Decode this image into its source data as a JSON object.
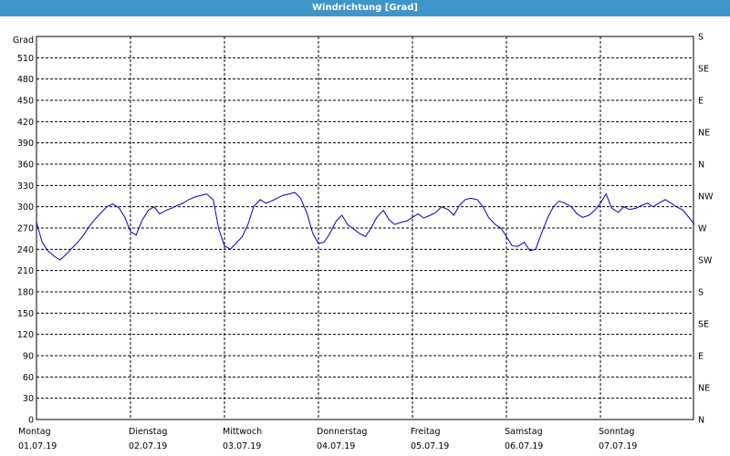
{
  "window": {
    "title": "Windrichtung [Grad]"
  },
  "chart_data": {
    "type": "line",
    "title": "Windrichtung [Grad]",
    "ylabel": "Grad",
    "ylim": [
      0,
      540
    ],
    "yticks": [
      0,
      30,
      60,
      90,
      120,
      150,
      180,
      210,
      240,
      270,
      300,
      330,
      360,
      390,
      420,
      450,
      480,
      510
    ],
    "right_ticks": [
      {
        "value": 0,
        "label": "N"
      },
      {
        "value": 45,
        "label": "NE"
      },
      {
        "value": 90,
        "label": "E"
      },
      {
        "value": 135,
        "label": "SE"
      },
      {
        "value": 180,
        "label": "S"
      },
      {
        "value": 225,
        "label": "SW"
      },
      {
        "value": 270,
        "label": "W"
      },
      {
        "value": 315,
        "label": "NW"
      },
      {
        "value": 360,
        "label": "N"
      },
      {
        "value": 405,
        "label": "NE"
      },
      {
        "value": 450,
        "label": "E"
      },
      {
        "value": 495,
        "label": "SE"
      },
      {
        "value": 540,
        "label": "S"
      }
    ],
    "days": [
      {
        "day": "Montag",
        "date": "01.07.19"
      },
      {
        "day": "Dienstag",
        "date": "02.07.19"
      },
      {
        "day": "Mittwoch",
        "date": "03.07.19"
      },
      {
        "day": "Donnerstag",
        "date": "04.07.19"
      },
      {
        "day": "Freitag",
        "date": "05.07.19"
      },
      {
        "day": "Samstag",
        "date": "06.07.19"
      },
      {
        "day": "Sonntag",
        "date": "07.07.19"
      }
    ],
    "x_unit": "days since 01.07.19 00:00",
    "grid": true,
    "line_color": "#0000cc",
    "series": [
      {
        "name": "",
        "x": [
          0,
          0.06,
          0.12,
          0.19,
          0.25,
          0.31,
          0.38,
          0.44,
          0.5,
          0.56,
          0.62,
          0.69,
          0.75,
          0.81,
          0.88,
          0.94,
          1,
          1.06,
          1.12,
          1.19,
          1.25,
          1.31,
          1.38,
          1.44,
          1.5,
          1.56,
          1.62,
          1.69,
          1.75,
          1.81,
          1.88,
          1.94,
          2,
          2.06,
          2.12,
          2.19,
          2.25,
          2.31,
          2.38,
          2.44,
          2.5,
          2.56,
          2.62,
          2.69,
          2.75,
          2.81,
          2.88,
          2.94,
          3,
          3.06,
          3.12,
          3.19,
          3.25,
          3.31,
          3.38,
          3.44,
          3.5,
          3.56,
          3.62,
          3.69,
          3.75,
          3.81,
          3.88,
          3.94,
          4,
          4.06,
          4.12,
          4.19,
          4.25,
          4.31,
          4.38,
          4.44,
          4.5,
          4.56,
          4.62,
          4.69,
          4.75,
          4.81,
          4.88,
          4.94,
          5,
          5.06,
          5.12,
          5.19,
          5.25,
          5.31,
          5.38,
          5.44,
          5.5,
          5.56,
          5.62,
          5.69,
          5.75,
          5.81,
          5.88,
          5.94,
          6,
          6.06,
          6.12,
          6.19,
          6.25,
          6.31,
          6.38,
          6.44,
          6.5,
          6.56,
          6.62,
          6.69,
          6.75,
          6.81,
          6.88,
          6.94,
          7
        ],
        "values": [
          278,
          250,
          238,
          230,
          225,
          232,
          242,
          250,
          260,
          272,
          282,
          292,
          300,
          304,
          298,
          285,
          265,
          260,
          280,
          295,
          300,
          290,
          295,
          298,
          302,
          305,
          310,
          314,
          316,
          318,
          310,
          268,
          245,
          240,
          248,
          258,
          275,
          300,
          310,
          305,
          308,
          312,
          316,
          318,
          320,
          312,
          290,
          262,
          248,
          250,
          262,
          280,
          288,
          275,
          268,
          262,
          258,
          270,
          285,
          295,
          282,
          275,
          278,
          280,
          285,
          290,
          284,
          288,
          292,
          300,
          296,
          288,
          302,
          310,
          312,
          310,
          300,
          285,
          275,
          270,
          258,
          245,
          244,
          250,
          238,
          240,
          265,
          285,
          300,
          308,
          305,
          300,
          290,
          285,
          288,
          295,
          305,
          318,
          298,
          292,
          300,
          296,
          298,
          302,
          305,
          300,
          305,
          310,
          305,
          300,
          295,
          285,
          275
        ]
      }
    ]
  }
}
